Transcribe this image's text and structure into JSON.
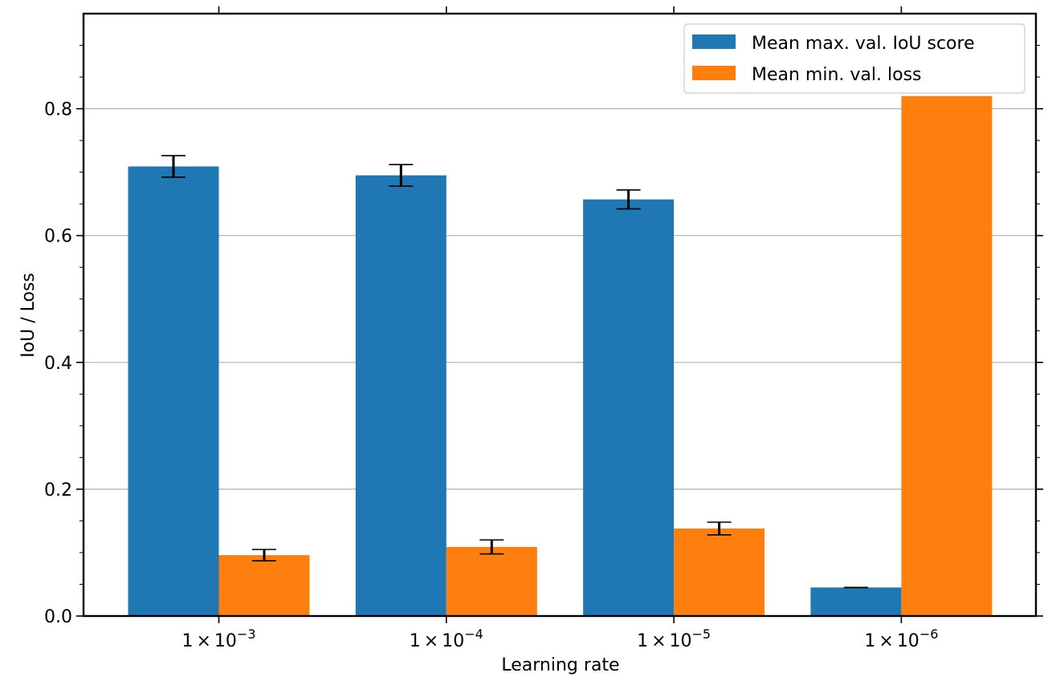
{
  "chart_data": {
    "type": "bar",
    "title": "",
    "xlabel": "Learning rate",
    "ylabel": "IoU / Loss",
    "ylim": [
      0,
      0.95
    ],
    "yticks": [
      0.0,
      0.2,
      0.4,
      0.6,
      0.8
    ],
    "ytick_labels": [
      "0.0",
      "0.2",
      "0.4",
      "0.6",
      "0.8"
    ],
    "grid": "y",
    "categories": [
      {
        "base": "1",
        "op": "×",
        "mant": "10",
        "exp": "−3"
      },
      {
        "base": "1",
        "op": "×",
        "mant": "10",
        "exp": "−4"
      },
      {
        "base": "1",
        "op": "×",
        "mant": "10",
        "exp": "−5"
      },
      {
        "base": "1",
        "op": "×",
        "mant": "10",
        "exp": "−6"
      }
    ],
    "series": [
      {
        "name": "Mean max. val. IoU score",
        "color": "#1f77b4",
        "values": [
          0.709,
          0.695,
          0.657,
          0.045
        ],
        "errors": [
          0.017,
          0.017,
          0.015,
          0.0
        ]
      },
      {
        "name": "Mean min. val. loss",
        "color": "#ff7f0e",
        "values": [
          0.096,
          0.109,
          0.138,
          0.82
        ],
        "errors": [
          0.009,
          0.011,
          0.01,
          null
        ]
      }
    ],
    "legend_position": "top-right"
  }
}
